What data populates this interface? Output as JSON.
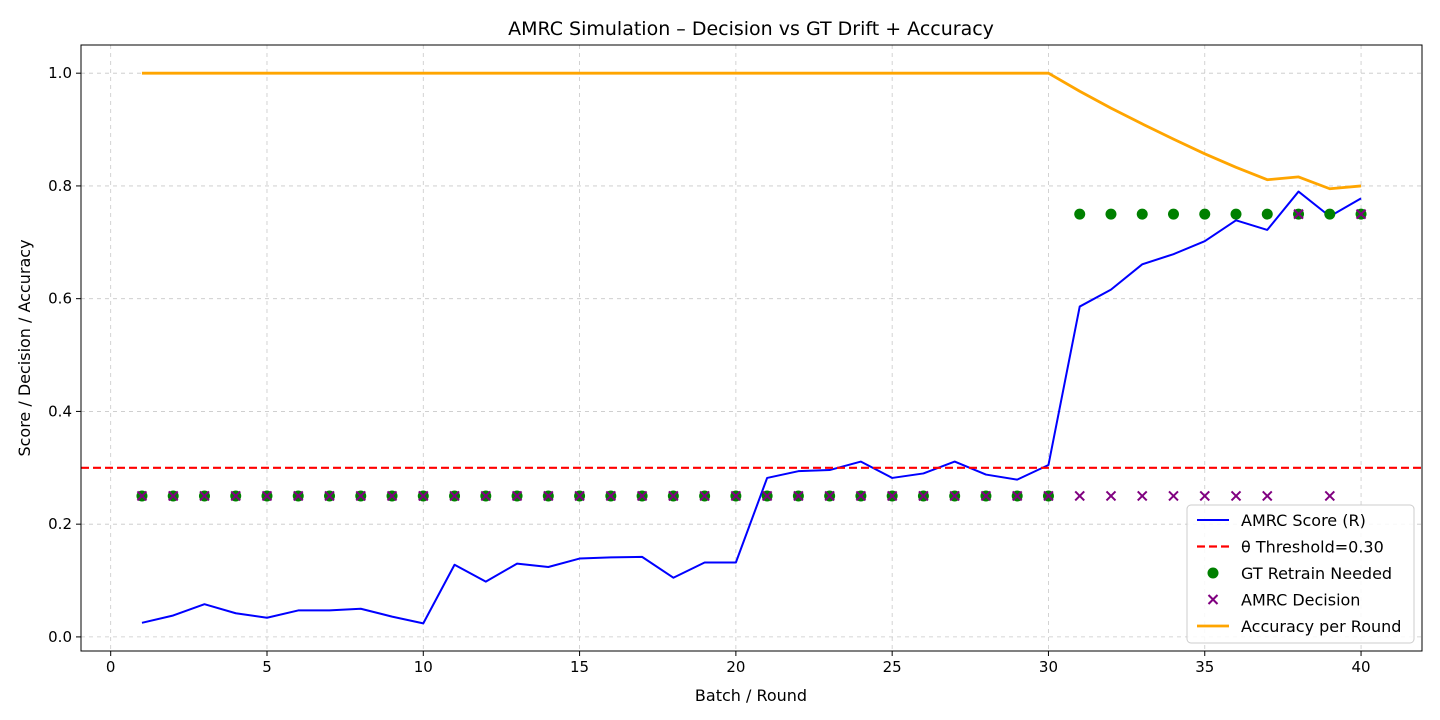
{
  "chart_data": {
    "type": "line",
    "title": "AMRC Simulation – Decision vs GT Drift + Accuracy",
    "xlabel": "Batch / Round",
    "ylabel": "Score / Decision / Accuracy",
    "xlim": [
      -0.95,
      41.95
    ],
    "ylim": [
      -0.025,
      1.05
    ],
    "xticks": [
      0,
      5,
      10,
      15,
      20,
      25,
      30,
      35,
      40
    ],
    "yticks": [
      0.0,
      0.2,
      0.4,
      0.6,
      0.8,
      1.0
    ],
    "xtick_labels": [
      "0",
      "5",
      "10",
      "15",
      "20",
      "25",
      "30",
      "35",
      "40"
    ],
    "ytick_labels": [
      "0.0",
      "0.2",
      "0.4",
      "0.6",
      "0.8",
      "1.0"
    ],
    "grid": true,
    "legend_position": "lower-right",
    "x": [
      1,
      2,
      3,
      4,
      5,
      6,
      7,
      8,
      9,
      10,
      11,
      12,
      13,
      14,
      15,
      16,
      17,
      18,
      19,
      20,
      21,
      22,
      23,
      24,
      25,
      26,
      27,
      28,
      29,
      30,
      31,
      32,
      33,
      34,
      35,
      36,
      37,
      38,
      39,
      40
    ],
    "series": [
      {
        "name": "AMRC Score (R)",
        "kind": "line",
        "color": "#0000ff",
        "values": [
          0.025,
          0.038,
          0.058,
          0.042,
          0.034,
          0.047,
          0.047,
          0.05,
          0.036,
          0.024,
          0.128,
          0.098,
          0.13,
          0.124,
          0.139,
          0.141,
          0.142,
          0.105,
          0.132,
          0.132,
          0.282,
          0.294,
          0.296,
          0.311,
          0.282,
          0.29,
          0.311,
          0.288,
          0.279,
          0.305,
          0.586,
          0.616,
          0.661,
          0.679,
          0.702,
          0.739,
          0.722,
          0.79,
          0.746,
          0.778
        ]
      },
      {
        "name": "θ Threshold=0.30",
        "kind": "hline",
        "color": "#ff0000",
        "value": 0.3
      },
      {
        "name": "GT Retrain Needed",
        "kind": "scatter-dot",
        "color": "#008000",
        "values": [
          0.25,
          0.25,
          0.25,
          0.25,
          0.25,
          0.25,
          0.25,
          0.25,
          0.25,
          0.25,
          0.25,
          0.25,
          0.25,
          0.25,
          0.25,
          0.25,
          0.25,
          0.25,
          0.25,
          0.25,
          0.25,
          0.25,
          0.25,
          0.25,
          0.25,
          0.25,
          0.25,
          0.25,
          0.25,
          0.25,
          0.75,
          0.75,
          0.75,
          0.75,
          0.75,
          0.75,
          0.75,
          0.75,
          0.75,
          0.75
        ]
      },
      {
        "name": "AMRC Decision",
        "kind": "scatter-x",
        "color": "#800080",
        "values": [
          0.25,
          0.25,
          0.25,
          0.25,
          0.25,
          0.25,
          0.25,
          0.25,
          0.25,
          0.25,
          0.25,
          0.25,
          0.25,
          0.25,
          0.25,
          0.25,
          0.25,
          0.25,
          0.25,
          0.25,
          0.25,
          0.25,
          0.25,
          0.25,
          0.25,
          0.25,
          0.25,
          0.25,
          0.25,
          0.25,
          0.25,
          0.25,
          0.25,
          0.25,
          0.25,
          0.25,
          0.25,
          0.75,
          0.25,
          0.75
        ]
      },
      {
        "name": "Accuracy per Round",
        "kind": "line-thick",
        "color": "#ffa500",
        "values": [
          1.0,
          1.0,
          1.0,
          1.0,
          1.0,
          1.0,
          1.0,
          1.0,
          1.0,
          1.0,
          1.0,
          1.0,
          1.0,
          1.0,
          1.0,
          1.0,
          1.0,
          1.0,
          1.0,
          1.0,
          1.0,
          1.0,
          1.0,
          1.0,
          1.0,
          1.0,
          1.0,
          1.0,
          1.0,
          1.0,
          0.968,
          0.938,
          0.91,
          0.883,
          0.857,
          0.833,
          0.811,
          0.816,
          0.795,
          0.8
        ]
      }
    ]
  }
}
